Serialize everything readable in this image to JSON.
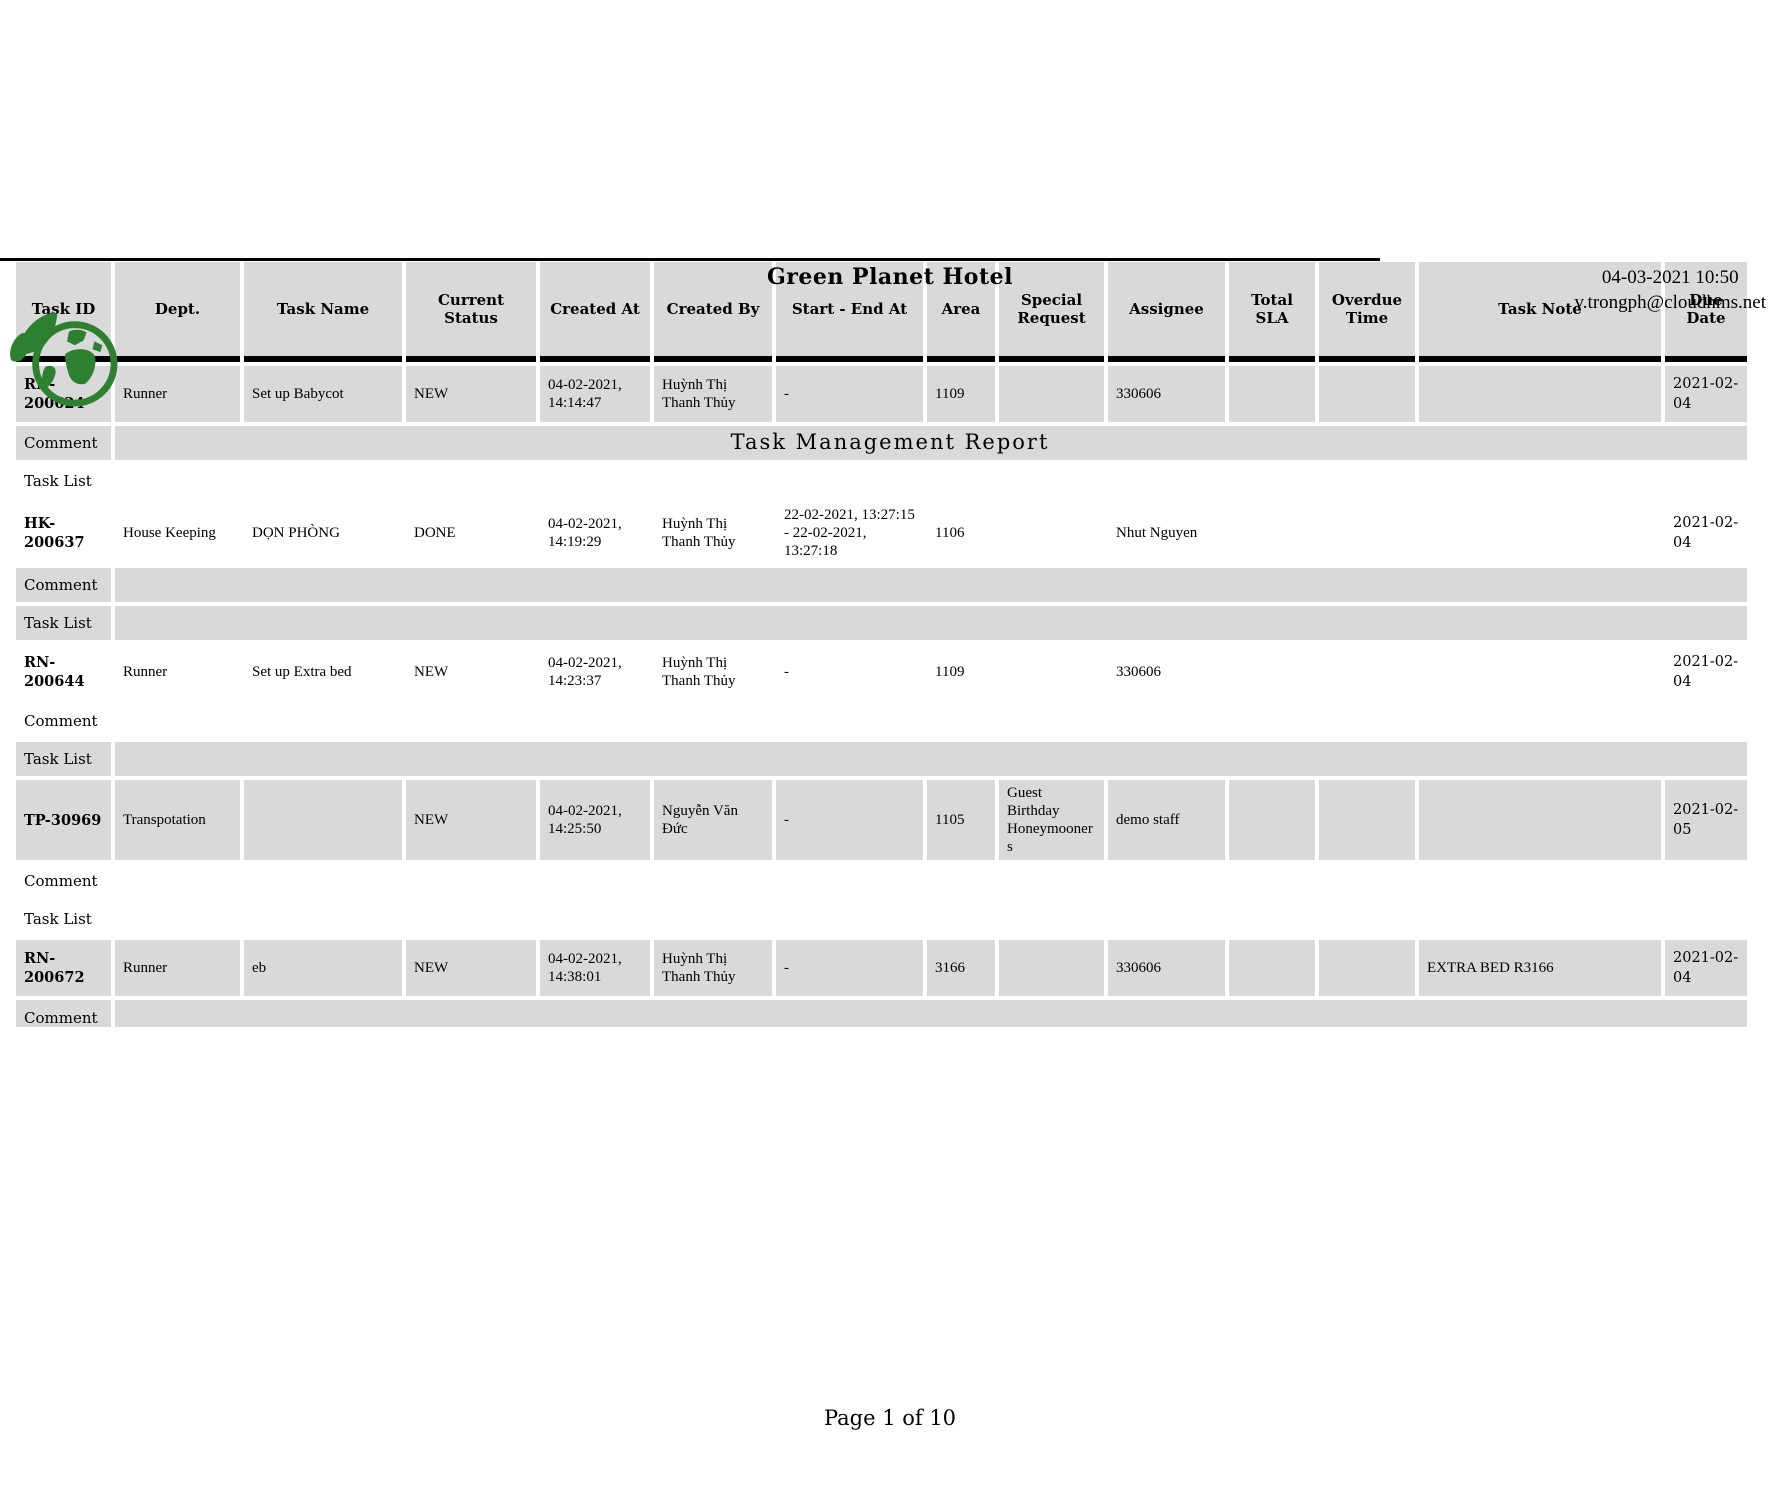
{
  "colors": {
    "logo_green": "#2e8031",
    "row_shading": "#d9d9d9",
    "header_rule": "#000000"
  },
  "header": {
    "hotel_name": "Green Planet Hotel",
    "printed_at": "04-03-2021 10:50",
    "user_email": "v.trongph@cloudhms.net",
    "logo": "green-planet-leaf-globe"
  },
  "title": "Task Management Report",
  "table": {
    "columns": [
      "Task ID",
      "Dept.",
      "Task Name",
      "Current Status",
      "Created At",
      "Created By",
      "Start - End At",
      "Area",
      "Special Request",
      "Assignee",
      "Total SLA",
      "Overdue Time",
      "Task Note",
      "Due Date"
    ],
    "sub_row_labels": {
      "comment": "Comment",
      "task_list": "Task List"
    },
    "rows": [
      {
        "cells": [
          "RN-200624",
          "Runner",
          "Set up Babycot",
          "NEW",
          "04-02-2021, 14:14:47",
          "Huỳnh Thị Thanh Thủy",
          "-",
          "1109",
          "",
          "330606",
          "",
          "",
          "",
          "2021-02-04"
        ],
        "shading": {
          "task": true,
          "comment": true,
          "task_list": false
        },
        "truncated": false
      },
      {
        "cells": [
          "HK-200637",
          "House Keeping",
          "DỌN PHÒNG",
          "DONE",
          "04-02-2021, 14:19:29",
          "Huỳnh Thị Thanh Thủy",
          "22-02-2021, 13:27:15 - 22-02-2021, 13:27:18",
          "1106",
          "",
          "Nhut Nguyen",
          "",
          "",
          "",
          "2021-02-04"
        ],
        "shading": {
          "task": false,
          "comment": true,
          "task_list": true
        },
        "truncated": false
      },
      {
        "cells": [
          "RN-200644",
          "Runner",
          "Set up Extra bed",
          "NEW",
          "04-02-2021, 14:23:37",
          "Huỳnh Thị Thanh Thủy",
          "-",
          "1109",
          "",
          "330606",
          "",
          "",
          "",
          "2021-02-04"
        ],
        "shading": {
          "task": false,
          "comment": false,
          "task_list": true
        },
        "truncated": false
      },
      {
        "cells": [
          "TP-30969",
          "Transpotation",
          "",
          "NEW",
          "04-02-2021, 14:25:50",
          "Nguyễn Văn Đức",
          "-",
          "1105",
          "Guest Birthday Honeymooners",
          "demo staff",
          "",
          "",
          "",
          "2021-02-05"
        ],
        "shading": {
          "task": true,
          "comment": false,
          "task_list": false
        },
        "truncated": false
      },
      {
        "cells": [
          "RN-200672",
          "Runner",
          "eb",
          "NEW",
          "04-02-2021, 14:38:01",
          "Huỳnh Thị Thanh Thủy",
          "-",
          "3166",
          "",
          "330606",
          "",
          "",
          "EXTRA BED R3166",
          "2021-02-04"
        ],
        "shading": {
          "task": true,
          "comment": true,
          "task_list": false
        },
        "truncated": true
      }
    ]
  },
  "footer": {
    "page_text": "Page 1 of 10"
  }
}
